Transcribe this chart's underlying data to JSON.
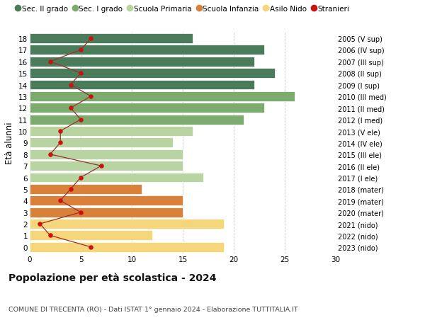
{
  "ages": [
    18,
    17,
    16,
    15,
    14,
    13,
    12,
    11,
    10,
    9,
    8,
    7,
    6,
    5,
    4,
    3,
    2,
    1,
    0
  ],
  "bar_values": [
    16,
    23,
    22,
    24,
    22,
    26,
    23,
    21,
    16,
    14,
    15,
    15,
    17,
    11,
    15,
    15,
    19,
    12,
    19
  ],
  "bar_colors": [
    "#4a7c59",
    "#4a7c59",
    "#4a7c59",
    "#4a7c59",
    "#4a7c59",
    "#7dab6e",
    "#7dab6e",
    "#7dab6e",
    "#b8d4a0",
    "#b8d4a0",
    "#b8d4a0",
    "#b8d4a0",
    "#b8d4a0",
    "#d9803a",
    "#d9803a",
    "#d9803a",
    "#f5d67a",
    "#f5d67a",
    "#f5d67a"
  ],
  "stranieri_values": [
    6,
    5,
    2,
    5,
    4,
    6,
    4,
    5,
    3,
    3,
    2,
    7,
    5,
    4,
    3,
    5,
    1,
    2,
    6
  ],
  "right_labels": [
    "2005 (V sup)",
    "2006 (IV sup)",
    "2007 (III sup)",
    "2008 (II sup)",
    "2009 (I sup)",
    "2010 (III med)",
    "2011 (II med)",
    "2012 (I med)",
    "2013 (V ele)",
    "2014 (IV ele)",
    "2015 (III ele)",
    "2016 (II ele)",
    "2017 (I ele)",
    "2018 (mater)",
    "2019 (mater)",
    "2020 (mater)",
    "2021 (nido)",
    "2022 (nido)",
    "2023 (nido)"
  ],
  "legend_labels": [
    "Sec. II grado",
    "Sec. I grado",
    "Scuola Primaria",
    "Scuola Infanzia",
    "Asilo Nido",
    "Stranieri"
  ],
  "legend_colors": [
    "#4a7c59",
    "#7dab6e",
    "#b8d4a0",
    "#d9803a",
    "#f5d67a",
    "#cc1111"
  ],
  "ylabel": "Età alunni",
  "title": "Popolazione per età scolastica - 2024",
  "subtitle": "COMUNE DI TRECENTA (RO) - Dati ISTAT 1° gennaio 2024 - Elaborazione TUTTITALIA.IT",
  "xlim": [
    0,
    30
  ],
  "xticks": [
    0,
    5,
    10,
    15,
    20,
    25,
    30
  ],
  "background_color": "#ffffff",
  "grid_color": "#cccccc",
  "stranieri_color": "#cc1111",
  "stranieri_line_color": "#993333"
}
